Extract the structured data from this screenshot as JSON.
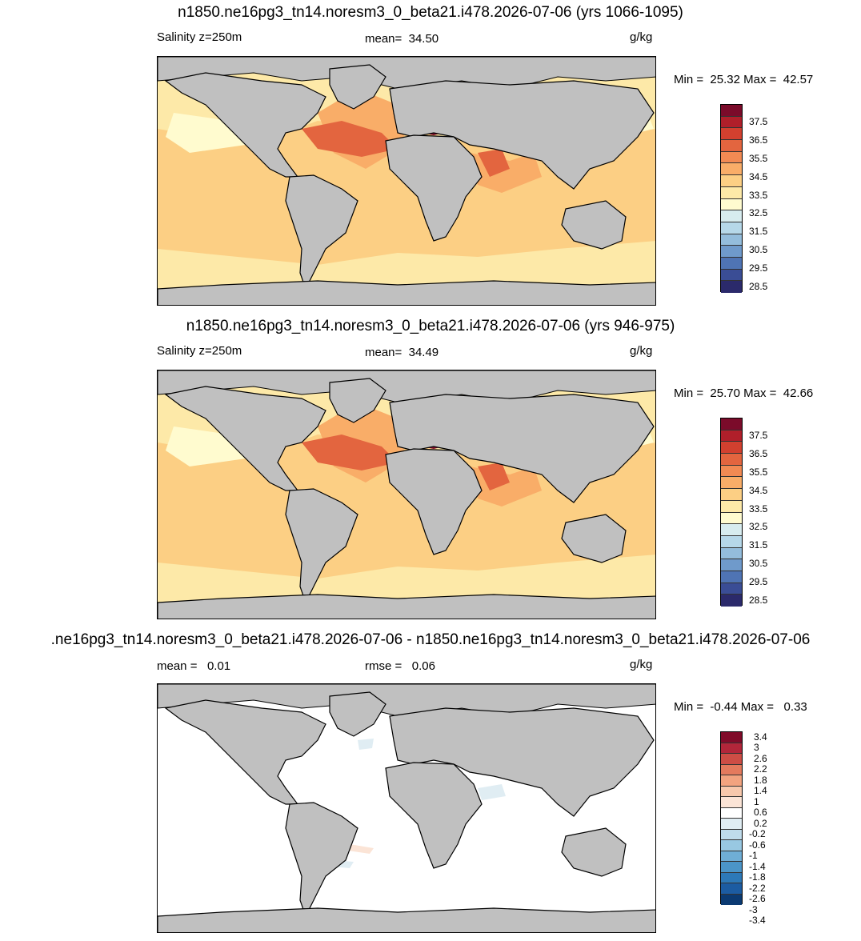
{
  "colors": {
    "land": "#c0c0c0",
    "coast": "#000000",
    "abs_scale": [
      "#2b2a6b",
      "#3a4d95",
      "#4f74b4",
      "#6f9acb",
      "#94bddc",
      "#b6d8e9",
      "#d7ecef",
      "#fffbcf",
      "#fde9a8",
      "#fccf84",
      "#f9ad68",
      "#f28a53",
      "#e3653f",
      "#d2402f",
      "#b01f2a",
      "#7b0b2a"
    ],
    "diff_scale": [
      "#0b3a72",
      "#1c5ca2",
      "#2d79b8",
      "#4b95c8",
      "#6faed6",
      "#98c8e2",
      "#bfdbeb",
      "#e0edf3",
      "#ffffff",
      "#fbe4d6",
      "#f7c8ac",
      "#f2a37f",
      "#e47a5d",
      "#cd4d45",
      "#b2263a",
      "#800b29"
    ]
  },
  "panels": [
    {
      "id": "p1",
      "title": "n1850.ne16pg3_tn14.noresm3_0_beta21.i478.2026-07-06 (yrs 1066-1095)",
      "left_label": "Salinity z=250m",
      "center_label": "mean=  34.50",
      "units": "g/kg",
      "minmax": "Min =  25.32 Max =  42.57",
      "scale": "abs",
      "ticks": [
        "37.5",
        "36.5",
        "35.5",
        "34.5",
        "33.5",
        "32.5",
        "31.5",
        "30.5",
        "29.5",
        "28.5"
      ]
    },
    {
      "id": "p2",
      "title": "n1850.ne16pg3_tn14.noresm3_0_beta21.i478.2026-07-06 (yrs 946-975)",
      "left_label": "Salinity z=250m",
      "center_label": "mean=  34.49",
      "units": "g/kg",
      "minmax": "Min =  25.70 Max =  42.66",
      "scale": "abs",
      "ticks": [
        "37.5",
        "36.5",
        "35.5",
        "34.5",
        "33.5",
        "32.5",
        "31.5",
        "30.5",
        "29.5",
        "28.5"
      ]
    },
    {
      "id": "p3",
      "title": ".ne16pg3_tn14.noresm3_0_beta21.i478.2026-07-06 - n1850.ne16pg3_tn14.noresm3_0_beta21.i478.2026-07-06",
      "left_label": "mean =   0.01",
      "center_label": "rmse =   0.06",
      "units": "g/kg",
      "minmax": "Min =  -0.44 Max =   0.33",
      "scale": "diff",
      "ticks": [
        "3.4",
        "3",
        "2.6",
        "2.2",
        "1.8",
        "1.4",
        "1",
        "0.6",
        "0.2",
        "-0.2",
        "-0.6",
        "-1",
        "-1.4",
        "-1.8",
        "-2.2",
        "-2.6",
        "-3",
        "-3.4"
      ]
    }
  ]
}
